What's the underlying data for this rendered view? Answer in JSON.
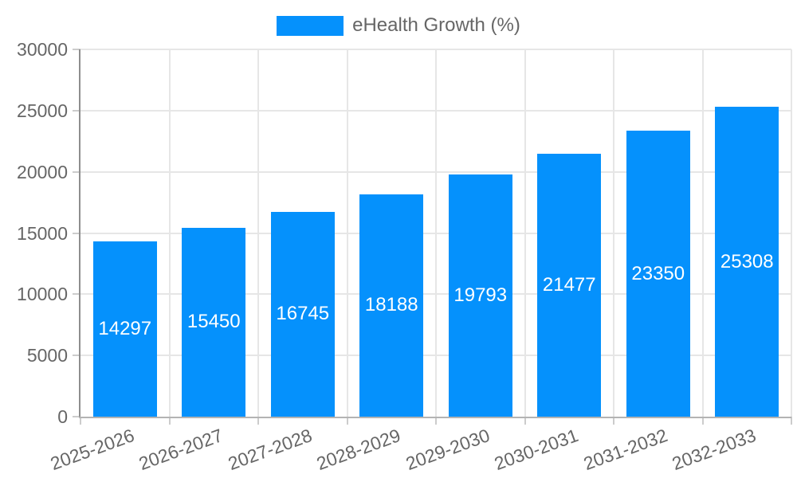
{
  "legend": {
    "label": "eHealth Growth (%)"
  },
  "chart_data": {
    "type": "bar",
    "title": "",
    "series_name": "eHealth Growth (%)",
    "categories": [
      "2025-2026",
      "2026-2027",
      "2027-2028",
      "2028-2029",
      "2029-2030",
      "2030-2031",
      "2031-2032",
      "2032-2033"
    ],
    "values": [
      14297,
      15450,
      16745,
      18188,
      19793,
      21477,
      23350,
      25308
    ],
    "xlabel": "",
    "ylabel": "",
    "ylim": [
      0,
      30000
    ],
    "ytick_step": 5000,
    "ytick_labels": [
      "0",
      "5000",
      "10000",
      "15000",
      "20000",
      "25000",
      "30000"
    ],
    "grid": true,
    "legend_position": "top",
    "x_label_rotation_deg": -20,
    "colors": {
      "bar": "#0591fc",
      "bar_value_text": "#ffffff",
      "grid": "#e6e6e6",
      "tick": "#cccccc",
      "y_axis_line": "#8e8e8e",
      "x_axis_line": "#b3b3b3",
      "text": "#666666",
      "background": "#ffffff"
    }
  }
}
